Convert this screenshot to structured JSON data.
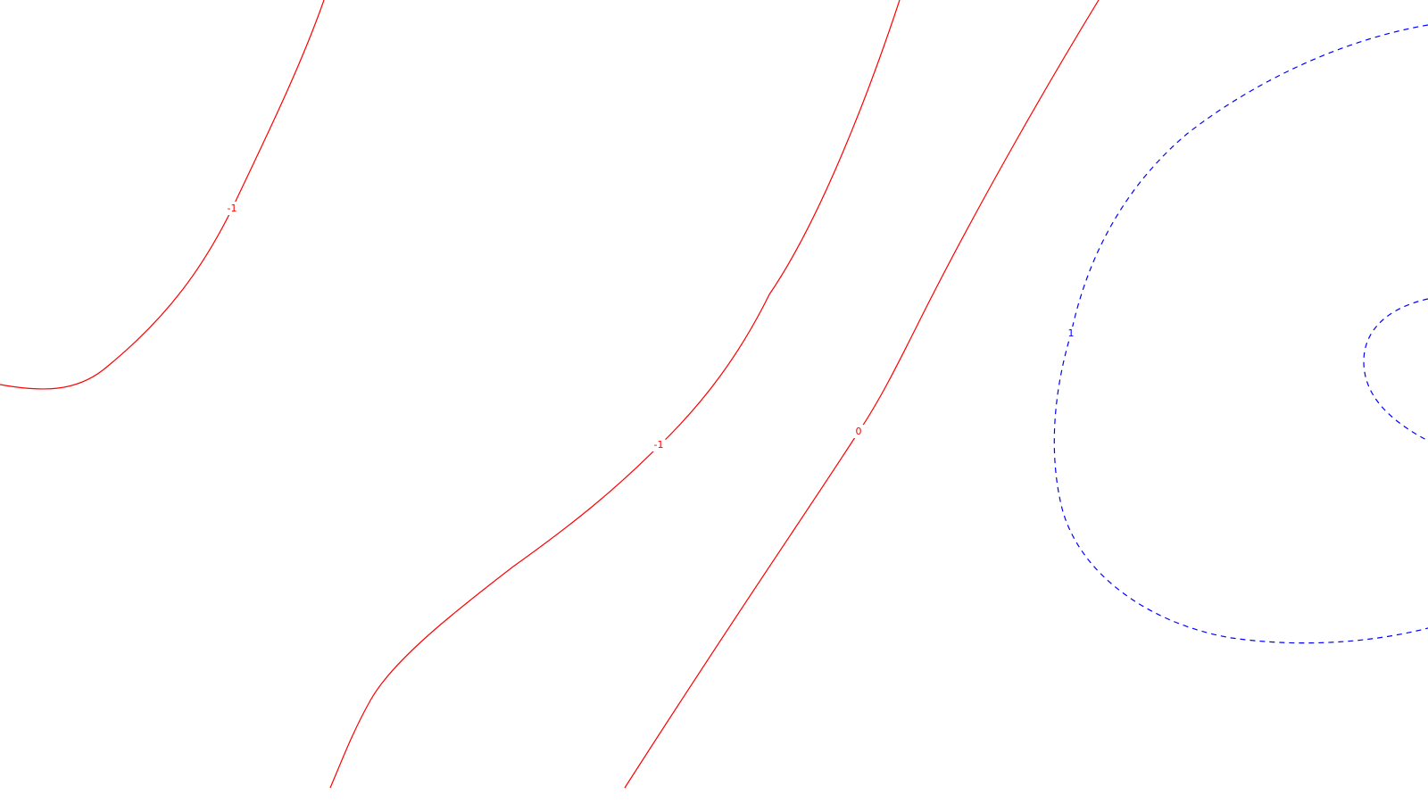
{
  "chart_data": {
    "type": "contour",
    "grid": false,
    "colors": {
      "negative_and_zero": "#ff0000",
      "positive": "#0000ff",
      "background": "#ffffff"
    },
    "line_styles": {
      "negative_and_zero": "solid",
      "positive": "dashed"
    },
    "contours": [
      {
        "id": "contour-neg1-left",
        "level": -1,
        "label": "-1"
      },
      {
        "id": "contour-neg1-middle",
        "level": -1,
        "label": "-1"
      },
      {
        "id": "contour-zero",
        "level": 0,
        "label": "0"
      },
      {
        "id": "contour-pos1-outer",
        "level": 1,
        "label": "1"
      },
      {
        "id": "contour-pos1-inner",
        "level": 1,
        "label": ""
      }
    ]
  }
}
